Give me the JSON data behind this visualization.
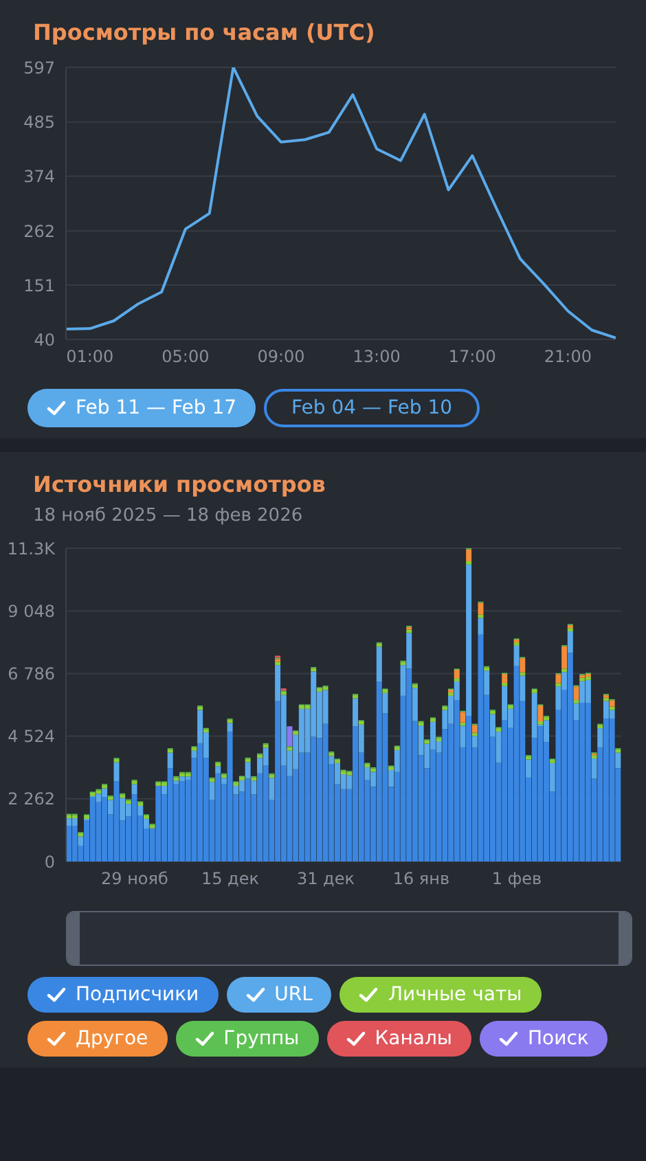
{
  "chart_data": [
    {
      "type": "line",
      "title": "Просмотры по часам (UTC)",
      "x": [
        0,
        1,
        2,
        3,
        4,
        5,
        6,
        7,
        8,
        9,
        10,
        11,
        12,
        13,
        14,
        15,
        16,
        17,
        18,
        19,
        20,
        21,
        22,
        23
      ],
      "series": [
        {
          "name": "Feb 11 — Feb 17",
          "color": "#5aaaea",
          "values": [
            61,
            62,
            78,
            112,
            137,
            266,
            298,
            597,
            497,
            444,
            449,
            464,
            541,
            430,
            406,
            501,
            346,
            416,
            309,
            205,
            153,
            98,
            59,
            43
          ]
        }
      ],
      "xlim": [
        0,
        23
      ],
      "xticks": [
        {
          "value": 1,
          "label": "01:00"
        },
        {
          "value": 5,
          "label": "05:00"
        },
        {
          "value": 9,
          "label": "09:00"
        },
        {
          "value": 13,
          "label": "13:00"
        },
        {
          "value": 17,
          "label": "17:00"
        },
        {
          "value": 21,
          "label": "21:00"
        }
      ],
      "ylim": [
        40,
        597
      ],
      "yticks": [
        40,
        151,
        262,
        374,
        485,
        597
      ],
      "grid": "y",
      "marker": "none",
      "legend": "bottom",
      "annotations": [
        "Feb 04 — Feb 10"
      ]
    },
    {
      "type": "bar",
      "title": "Источники просмотров",
      "subtitle": "18 нояб 2025 — 18 фев 2026",
      "stacked": true,
      "grid": "y",
      "legend": "bottom",
      "categories": [
        null,
        null,
        null,
        null,
        null,
        null,
        null,
        null,
        null,
        null,
        null,
        "29 нояб",
        null,
        null,
        null,
        null,
        null,
        null,
        null,
        null,
        null,
        null,
        null,
        null,
        null,
        null,
        null,
        "15 дек",
        null,
        null,
        null,
        null,
        null,
        null,
        null,
        null,
        null,
        null,
        null,
        null,
        null,
        null,
        null,
        "31 дек",
        null,
        null,
        null,
        null,
        null,
        null,
        null,
        null,
        null,
        null,
        null,
        null,
        null,
        null,
        null,
        "16 янв",
        null,
        null,
        null,
        null,
        null,
        null,
        null,
        null,
        null,
        null,
        null,
        null,
        null,
        null,
        null,
        "1 фев",
        null,
        null,
        null,
        null,
        null,
        null,
        null,
        null,
        null,
        null,
        null,
        null,
        null,
        null,
        null,
        null,
        null
      ],
      "ylim": [
        0,
        11310
      ],
      "yticks": [
        0,
        {
          "value": 2262,
          "label": "2 262"
        },
        {
          "value": 4524,
          "label": "4 524"
        },
        {
          "value": 6786,
          "label": "6 786"
        },
        {
          "value": 9048,
          "label": "9 048"
        },
        {
          "value": 11310,
          "label": "11.3K"
        }
      ],
      "series": [
        {
          "name": "Подписчики",
          "color": "#3a87e3",
          "values": [
            1290,
            1290,
            570,
            1480,
            2330,
            2140,
            2330,
            1700,
            2890,
            1480,
            1630,
            2420,
            1660,
            1190,
            1170,
            2730,
            2420,
            3370,
            2800,
            2890,
            2950,
            3740,
            4270,
            3740,
            2230,
            3180,
            2800,
            4690,
            2420,
            2520,
            2990,
            2420,
            3180,
            3460,
            2230,
            5790,
            3460,
            3080,
            3330,
            3930,
            3930,
            4500,
            4460,
            4970,
            3520,
            2800,
            2610,
            2610,
            4880,
            3930,
            2950,
            2700,
            6490,
            5350,
            2700,
            3230,
            5980,
            6960,
            5070,
            3840,
            3370,
            4030,
            3930,
            4780,
            4970,
            5820,
            4120,
            5260,
            4120,
            8190,
            6010,
            4500,
            3560,
            5110,
            4820,
            7050,
            5790,
            3030,
            4460,
            4880,
            4310,
            2520,
            5480,
            6200,
            7530,
            5110,
            5730,
            5730,
            2990,
            4120,
            5160,
            5160,
            3370
          ]
        },
        {
          "name": "URL",
          "color": "#5aa9ea",
          "values": [
            270,
            270,
            330,
            60,
            30,
            310,
            310,
            520,
            690,
            820,
            450,
            370,
            350,
            350,
            30,
            0,
            310,
            560,
            120,
            180,
            120,
            260,
            1200,
            920,
            640,
            260,
            220,
            310,
            310,
            410,
            600,
            500,
            560,
            650,
            790,
            1300,
            2550,
            920,
            1240,
            1580,
            1580,
            2360,
            1670,
            1220,
            290,
            750,
            540,
            500,
            1010,
            1010,
            450,
            540,
            1260,
            730,
            600,
            790,
            1110,
            1290,
            1200,
            1070,
            880,
            1010,
            410,
            690,
            1010,
            680,
            780,
            5460,
            410,
            600,
            880,
            820,
            1130,
            1220,
            690,
            740,
            920,
            650,
            1620,
            60,
            790,
            1030,
            840,
            640,
            780,
            600,
            780,
            820,
            730,
            690,
            630,
            310,
            560
          ]
        },
        {
          "name": "Личные чаты",
          "color": "#8bcd3b",
          "values": [
            120,
            120,
            120,
            120,
            120,
            120,
            120,
            120,
            120,
            120,
            120,
            120,
            120,
            120,
            120,
            120,
            120,
            120,
            120,
            120,
            120,
            120,
            120,
            120,
            120,
            120,
            120,
            120,
            120,
            120,
            120,
            120,
            120,
            120,
            120,
            120,
            120,
            120,
            120,
            120,
            120,
            120,
            120,
            120,
            120,
            120,
            120,
            120,
            120,
            120,
            120,
            120,
            120,
            120,
            120,
            120,
            120,
            120,
            120,
            120,
            120,
            120,
            120,
            120,
            120,
            120,
            120,
            120,
            120,
            120,
            120,
            120,
            120,
            120,
            120,
            120,
            120,
            120,
            120,
            120,
            120,
            120,
            120,
            120,
            120,
            120,
            120,
            120,
            120,
            120,
            120,
            120,
            120
          ]
        },
        {
          "name": "Другое",
          "color": "#f28c3a",
          "values": [
            0,
            0,
            0,
            0,
            0,
            0,
            0,
            0,
            0,
            0,
            0,
            0,
            0,
            0,
            0,
            0,
            0,
            0,
            0,
            0,
            0,
            0,
            0,
            0,
            0,
            0,
            0,
            0,
            0,
            0,
            0,
            0,
            0,
            0,
            0,
            100,
            0,
            0,
            0,
            0,
            0,
            0,
            0,
            0,
            0,
            0,
            0,
            0,
            0,
            0,
            0,
            0,
            0,
            0,
            0,
            0,
            0,
            100,
            0,
            0,
            0,
            0,
            0,
            0,
            100,
            300,
            380,
            430,
            280,
            430,
            0,
            0,
            0,
            320,
            0,
            100,
            510,
            0,
            0,
            570,
            0,
            0,
            320,
            810,
            100,
            490,
            100,
            100,
            60,
            0,
            100,
            230,
            0
          ]
        },
        {
          "name": "Группы",
          "color": "#5cc152",
          "values": [
            40,
            40,
            40,
            40,
            40,
            40,
            40,
            40,
            40,
            40,
            40,
            40,
            40,
            40,
            40,
            40,
            40,
            40,
            40,
            40,
            40,
            40,
            40,
            40,
            40,
            40,
            40,
            40,
            40,
            40,
            40,
            40,
            40,
            40,
            40,
            40,
            40,
            40,
            40,
            40,
            40,
            40,
            40,
            40,
            40,
            40,
            40,
            40,
            40,
            40,
            40,
            40,
            40,
            40,
            40,
            40,
            40,
            40,
            40,
            40,
            40,
            40,
            40,
            40,
            40,
            40,
            40,
            40,
            40,
            40,
            40,
            40,
            40,
            40,
            40,
            40,
            40,
            40,
            40,
            40,
            40,
            40,
            40,
            40,
            40,
            40,
            40,
            40,
            40,
            40,
            40,
            40,
            40
          ]
        },
        {
          "name": "Каналы",
          "color": "#e0545a",
          "values": [
            0,
            0,
            0,
            0,
            0,
            0,
            0,
            0,
            0,
            0,
            0,
            0,
            0,
            0,
            0,
            0,
            0,
            0,
            0,
            0,
            0,
            0,
            0,
            0,
            0,
            0,
            0,
            0,
            0,
            0,
            0,
            0,
            0,
            0,
            0,
            80,
            80,
            0,
            0,
            0,
            0,
            0,
            0,
            0,
            0,
            0,
            0,
            0,
            0,
            0,
            0,
            0,
            0,
            0,
            0,
            0,
            0,
            0,
            0,
            0,
            0,
            0,
            0,
            0,
            0,
            0,
            0,
            0,
            0,
            0,
            0,
            0,
            0,
            0,
            0,
            0,
            0,
            0,
            0,
            0,
            0,
            0,
            0,
            0,
            0,
            0,
            0,
            0,
            0,
            0,
            0,
            0,
            0
          ]
        },
        {
          "name": "Поиск",
          "color": "#8a7af0",
          "values": [
            0,
            0,
            0,
            0,
            0,
            0,
            0,
            0,
            0,
            0,
            0,
            0,
            0,
            0,
            0,
            0,
            0,
            0,
            0,
            0,
            0,
            0,
            0,
            0,
            0,
            0,
            0,
            0,
            0,
            0,
            0,
            0,
            0,
            0,
            0,
            0,
            0,
            720,
            0,
            0,
            0,
            0,
            0,
            0,
            0,
            0,
            0,
            0,
            0,
            0,
            0,
            0,
            0,
            0,
            0,
            0,
            0,
            0,
            0,
            0,
            0,
            0,
            0,
            0,
            0,
            0,
            0,
            0,
            0,
            0,
            0,
            0,
            0,
            0,
            0,
            0,
            0,
            0,
            0,
            0,
            0,
            0,
            0,
            0,
            0,
            0,
            0,
            0,
            0,
            0,
            0,
            0,
            0
          ]
        }
      ]
    }
  ]
}
